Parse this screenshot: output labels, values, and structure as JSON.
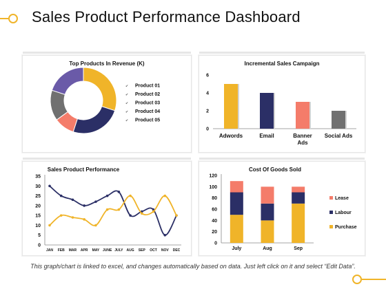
{
  "header": {
    "title": "Sales Product Performance Dashboard"
  },
  "footer": {
    "note": "This graph/chart is linked to excel, and changes automatically based on data.  Just left click on it and select “Edit Data”."
  },
  "colors": {
    "accent": "#f0b429",
    "navy": "#2b2f66",
    "salmon": "#f47c6a",
    "gray": "#707070",
    "purple": "#6a5aa8"
  },
  "chart_data": [
    {
      "type": "pie",
      "title": "Top Products In Revenue (K)",
      "categories": [
        "Product 01",
        "Product 02",
        "Product 03",
        "Product 04",
        "Product 05"
      ],
      "values": [
        30,
        25,
        10,
        15,
        20
      ],
      "colors": [
        "#f0b429",
        "#2b2f66",
        "#f47c6a",
        "#707070",
        "#6a5aa8"
      ],
      "legend": "right"
    },
    {
      "type": "bar",
      "title": "Incremental  Sales Campaign",
      "categories": [
        "Adwords",
        "Email",
        "Banner Ads",
        "Social Ads"
      ],
      "values": [
        5,
        4,
        3,
        2
      ],
      "colors": [
        "#f0b429",
        "#2b2f66",
        "#f47c6a",
        "#707070"
      ],
      "ylim": [
        0,
        6
      ],
      "yticks": [
        0,
        2,
        4,
        6
      ]
    },
    {
      "type": "line",
      "title": "Sales Product Performance",
      "categories": [
        "JAN",
        "FEB",
        "MAR",
        "APR",
        "MAY",
        "JUNE",
        "JULY",
        "AUG",
        "SEP",
        "OCT",
        "NOV",
        "DEC"
      ],
      "series": [
        {
          "values": [
            30,
            25,
            23,
            20,
            22,
            25,
            27,
            15,
            17,
            18,
            5,
            15
          ],
          "color": "#2b2f66"
        },
        {
          "values": [
            10,
            15,
            14,
            13,
            10,
            18,
            18,
            25,
            16,
            17,
            25,
            15
          ],
          "color": "#f0b429"
        }
      ],
      "ylim": [
        0,
        35
      ],
      "yticks": [
        0,
        5,
        10,
        15,
        20,
        25,
        30,
        35
      ]
    },
    {
      "type": "bar",
      "title": "Cost Of Goods Sold",
      "categories": [
        "July",
        "Aug",
        "Sep"
      ],
      "series": [
        {
          "name": "Purchase",
          "values": [
            50,
            40,
            70
          ],
          "color": "#f0b429"
        },
        {
          "name": "Labour",
          "values": [
            40,
            30,
            20
          ],
          "color": "#2b2f66"
        },
        {
          "name": "Lease",
          "values": [
            20,
            30,
            10
          ],
          "color": "#f47c6a"
        }
      ],
      "stacked": true,
      "ylim": [
        0,
        120
      ],
      "yticks": [
        0,
        20,
        40,
        60,
        80,
        100,
        120
      ],
      "legend": "right"
    }
  ]
}
